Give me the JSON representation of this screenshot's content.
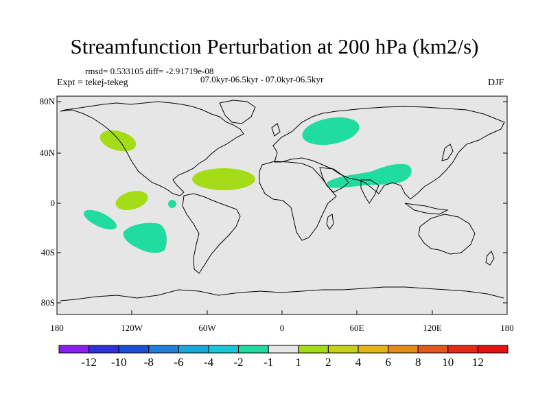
{
  "title": "Streamfunction Perturbation at 200 hPa (km2/s)",
  "stats_text": "rmsd= 0.533105 diff= -2.91719e-08",
  "period_text": "07.0kyr-06.5kyr - 07.0kyr-06.5kyr",
  "experiment_text": "Expt = tekej-tekeg",
  "season": "DJF",
  "lat_labels": [
    "80N",
    "40N",
    "0",
    "40S",
    "80S"
  ],
  "lon_labels": [
    "180",
    "120W",
    "60W",
    "0",
    "60E",
    "120E",
    "180"
  ],
  "colorbar": {
    "labels": [
      "-12",
      "-10",
      "-8",
      "-6",
      "-4",
      "-2",
      "-1",
      "1",
      "2",
      "4",
      "6",
      "8",
      "10",
      "12"
    ],
    "colors": [
      "#8a1ef0",
      "#3030d8",
      "#1a50d8",
      "#1f80dc",
      "#18a8dc",
      "#18c8d8",
      "#20dca0",
      "#e6e6e6",
      "#a4dc18",
      "#c8d018",
      "#e6b418",
      "#e68a18",
      "#e65818",
      "#e62a18",
      "#e61010"
    ]
  },
  "colors": {
    "ocean": "#e6e6e6",
    "negative_1_2": "#20dca0",
    "positive_1_2": "#a4dc18"
  }
}
